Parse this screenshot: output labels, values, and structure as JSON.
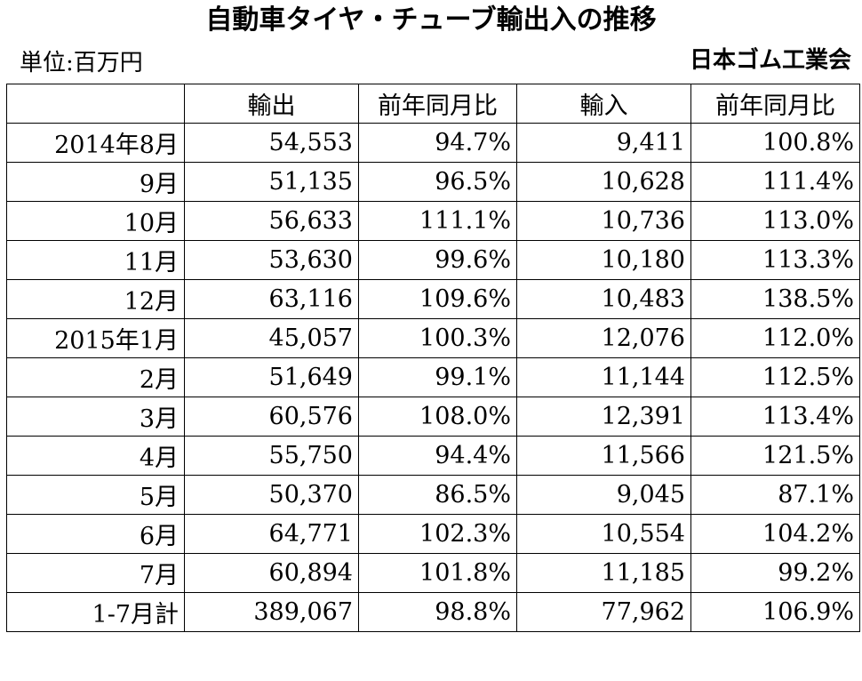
{
  "title": "自動車タイヤ・チューブ輸出入の推移",
  "unit": "単位:百万円",
  "source": "日本ゴム工業会",
  "columns": [
    "",
    "輸出",
    "前年同月比",
    "輸入",
    "前年同月比"
  ],
  "rows": [
    [
      "2014年8月",
      "54,553",
      "94.7%",
      "9,411",
      "100.8%"
    ],
    [
      "9月",
      "51,135",
      "96.5%",
      "10,628",
      "111.4%"
    ],
    [
      "10月",
      "56,633",
      "111.1%",
      "10,736",
      "113.0%"
    ],
    [
      "11月",
      "53,630",
      "99.6%",
      "10,180",
      "113.3%"
    ],
    [
      "12月",
      "63,116",
      "109.6%",
      "10,483",
      "138.5%"
    ],
    [
      "2015年1月",
      "45,057",
      "100.3%",
      "12,076",
      "112.0%"
    ],
    [
      "2月",
      "51,649",
      "99.1%",
      "11,144",
      "112.5%"
    ],
    [
      "3月",
      "60,576",
      "108.0%",
      "12,391",
      "113.4%"
    ],
    [
      "4月",
      "55,750",
      "94.4%",
      "11,566",
      "121.5%"
    ],
    [
      "5月",
      "50,370",
      "86.5%",
      "9,045",
      "87.1%"
    ],
    [
      "6月",
      "64,771",
      "102.3%",
      "10,554",
      "104.2%"
    ],
    [
      "7月",
      "60,894",
      "101.8%",
      "11,185",
      "99.2%"
    ],
    [
      "1-7月計",
      "389,067",
      "98.8%",
      "77,962",
      "106.9%"
    ]
  ]
}
